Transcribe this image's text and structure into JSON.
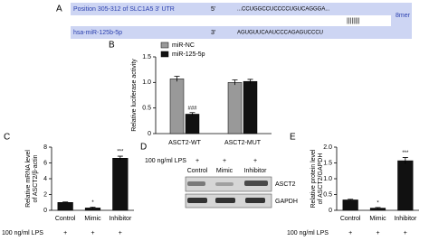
{
  "panel_a": {
    "letter": "A",
    "rows": [
      {
        "label": "Position 305-312 of SLC1A5 3' UTR",
        "end": "5'",
        "sequence": "...CCUGGCCUCCCCUGUCAGGGA..."
      },
      {
        "label": "hsa-miR-125b-5p",
        "end": "3'",
        "sequence": "AGUGUUCAAUCCCAGAGUCCCU"
      }
    ],
    "pairing": "||||||||",
    "site_type": "8mer"
  },
  "panel_d": {
    "letter": "D",
    "lps_label": "100 ng/ml LPS",
    "lps_signs": [
      "+",
      "+",
      "+"
    ],
    "lanes": [
      "Control",
      "Mimic",
      "Inhibitor"
    ],
    "bands": [
      "ASCT2",
      "GAPDH"
    ]
  },
  "chart_data": [
    {
      "type": "grouped_bar",
      "letter": "B",
      "ylabel": [
        "Relative luciferase activity"
      ],
      "categories": [
        "ASCT2-WT",
        "ASCT2-MUT"
      ],
      "series": [
        {
          "name": "miR-NC",
          "color": "#999999",
          "values": [
            1.07,
            1.0
          ],
          "errors": [
            0.05,
            0.05
          ],
          "significance": [
            null,
            null
          ]
        },
        {
          "name": "miR-125-5p",
          "color": "#111111",
          "values": [
            0.38,
            1.02
          ],
          "errors": [
            0.03,
            0.04
          ],
          "significance": [
            "###",
            null
          ]
        }
      ],
      "ylim": [
        0,
        1.5
      ],
      "yticks": [
        0,
        0.5,
        {
          "value": 1,
          "label": "1.0"
        },
        1.5
      ]
    },
    {
      "type": "bar",
      "letter": "C",
      "ylabel": [
        "Relative mRNA level",
        "of ASCT2/β-actin"
      ],
      "categories": [
        "Control",
        "Mimic",
        "Inhibitor"
      ],
      "values": [
        1.0,
        0.3,
        6.6
      ],
      "errors": [
        0.05,
        0.1,
        0.25
      ],
      "significance": [
        null,
        "*",
        "***"
      ],
      "color": "#111111",
      "lps_label": "100 ng/ml LPS",
      "lps_signs": [
        "+",
        "+",
        "+"
      ],
      "ylim": [
        0,
        8
      ],
      "yticks": [
        0,
        2,
        4,
        6,
        8
      ]
    },
    {
      "type": "bar",
      "letter": "E",
      "ylabel": [
        "Relative protein level",
        "of ASCT2/GAPDH"
      ],
      "categories": [
        "Control",
        "Mimic",
        "Inhibitor"
      ],
      "values": [
        0.33,
        0.07,
        1.57
      ],
      "errors": [
        0.02,
        0.02,
        0.1
      ],
      "significance": [
        null,
        "*",
        "***"
      ],
      "color": "#111111",
      "lps_label": "100 ng/ml LPS",
      "lps_signs": [
        "+",
        "+",
        "+"
      ],
      "ylim": [
        0,
        2
      ],
      "yticks": [
        0,
        0.5,
        {
          "value": 1,
          "label": "1.0"
        },
        1.5,
        {
          "value": 2,
          "label": "2.0"
        }
      ]
    }
  ]
}
